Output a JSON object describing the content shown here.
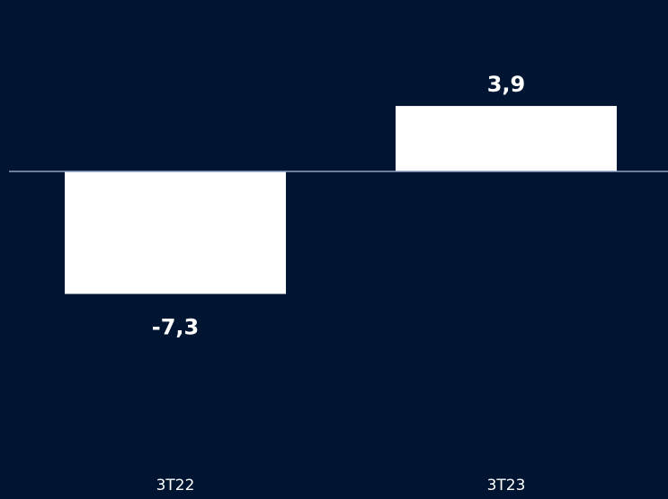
{
  "colors": {
    "background": "#001531",
    "bar": "#ffffff",
    "zero_line": "#8ea2c6",
    "text": "#ffffff"
  },
  "chart_data": {
    "type": "bar",
    "categories": [
      "3T22",
      "3T23"
    ],
    "values": [
      -7.3,
      3.9
    ],
    "value_labels": [
      "-7,3",
      "3,9"
    ],
    "title": "",
    "xlabel": "",
    "ylabel": "",
    "ylim": [
      -7.3,
      3.9
    ],
    "grid": false,
    "legend": "none"
  }
}
